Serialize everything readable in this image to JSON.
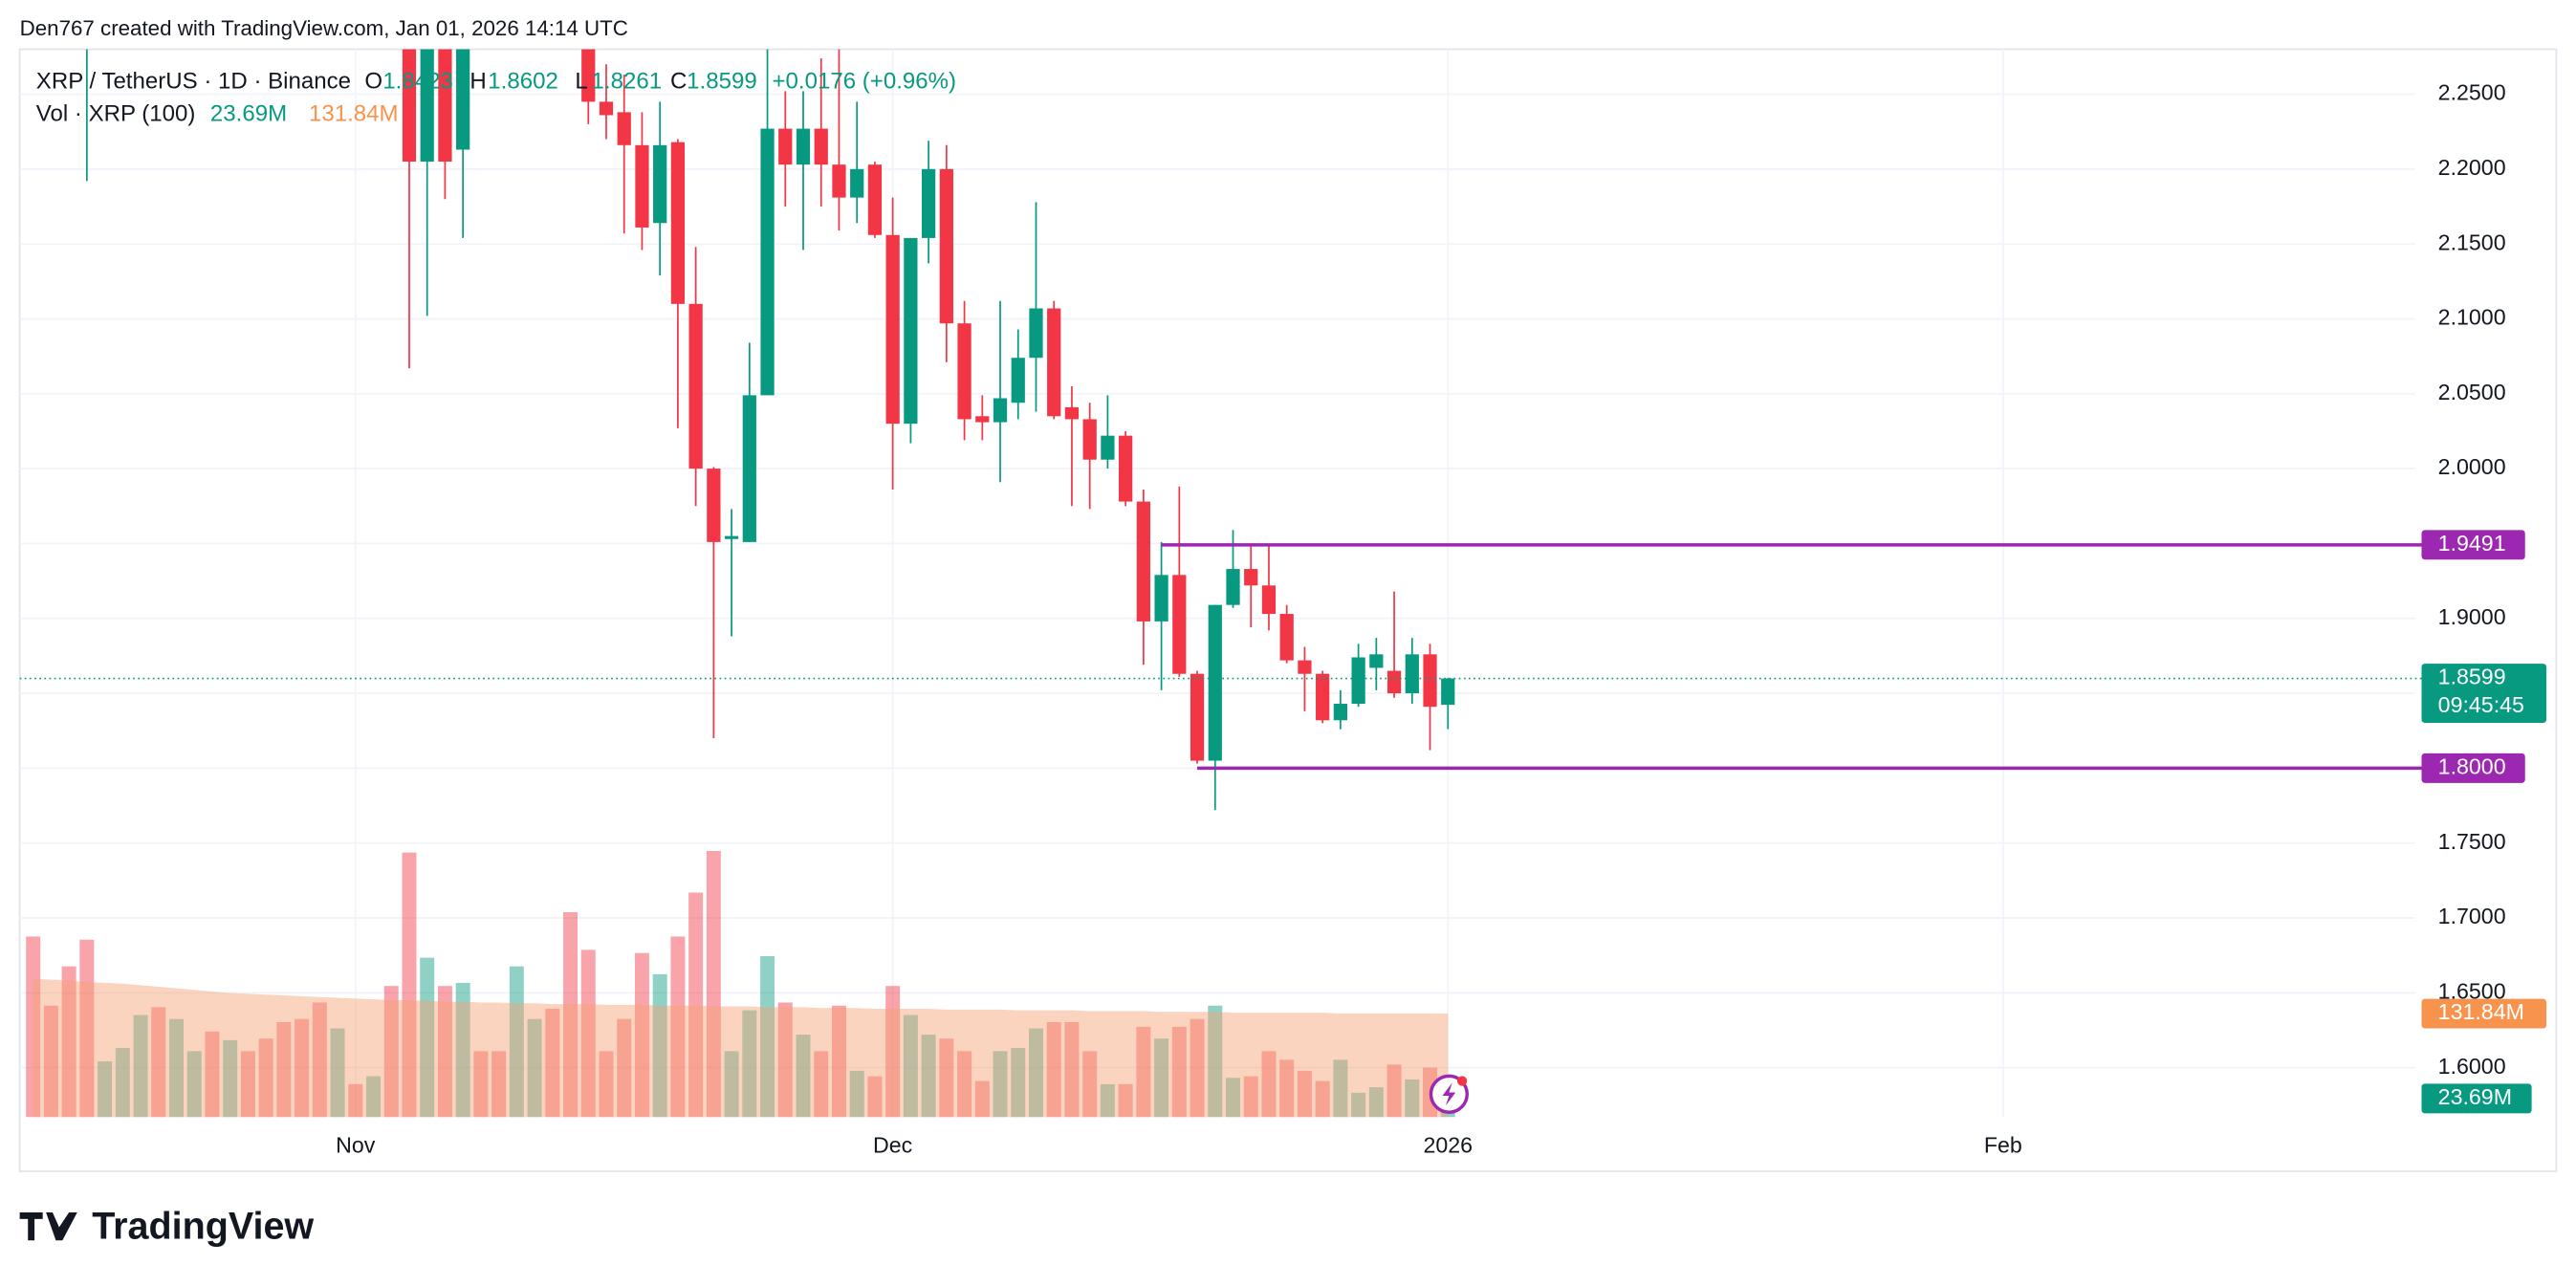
{
  "header": "Den767 created with TradingView.com, Jan 01, 2026 14:14 UTC",
  "brand": "TradingView",
  "chart_data": {
    "type": "candlestick",
    "symbol": "XRP / TetherUS · 1D · Binance",
    "ohlc_legend": [
      {
        "key": "O",
        "value": "1.8423"
      },
      {
        "key": "H",
        "value": "1.8602"
      },
      {
        "key": "L",
        "value": "1.8261"
      },
      {
        "key": "C",
        "value": "1.8599"
      }
    ],
    "change": "+0.0176 (+0.96%)",
    "x": [
      0,
      1,
      2,
      3,
      4,
      5,
      6,
      7,
      8,
      9,
      10,
      11,
      12,
      13,
      14,
      15,
      16,
      17,
      18,
      19,
      20,
      21,
      22,
      23,
      24,
      25,
      26,
      27,
      28,
      29,
      30,
      31,
      32,
      33,
      34,
      35,
      36,
      37,
      38,
      39,
      40,
      41,
      42,
      43,
      44,
      45,
      46,
      47,
      48,
      49,
      50,
      51,
      52,
      53,
      54,
      55,
      56,
      57,
      58,
      59,
      60,
      61,
      62,
      63,
      64,
      65,
      66,
      67,
      68,
      69,
      70,
      71,
      72,
      73,
      74,
      75,
      76,
      77,
      78,
      79
    ],
    "open": [
      null,
      null,
      null,
      2.35,
      null,
      null,
      null,
      null,
      null,
      null,
      null,
      null,
      null,
      null,
      null,
      null,
      null,
      null,
      null,
      null,
      null,
      2.3,
      2.205,
      2.31,
      2.213,
      null,
      null,
      null,
      null,
      null,
      null,
      2.3,
      2.245,
      2.238,
      2.216,
      2.164,
      2.218,
      2.11,
      2.0,
      1.953,
      1.951,
      2.049,
      2.227,
      2.203,
      2.227,
      2.203,
      2.181,
      2.203,
      2.156,
      2.03,
      2.154,
      2.2,
      2.097,
      2.035,
      2.031,
      2.044,
      2.074,
      2.107,
      2.041,
      2.033,
      2.006,
      2.022,
      1.978,
      1.898,
      1.929,
      1.863,
      1.805,
      1.909,
      1.933,
      1.922,
      1.903,
      1.872,
      1.863,
      1.832,
      1.843,
      1.867,
      1.865,
      1.85,
      1.876,
      1.8423
    ],
    "high": [
      null,
      null,
      null,
      2.4,
      null,
      null,
      null,
      null,
      null,
      null,
      null,
      null,
      null,
      null,
      null,
      null,
      null,
      null,
      null,
      null,
      null,
      2.33,
      2.32,
      2.33,
      2.31,
      null,
      null,
      null,
      null,
      null,
      null,
      2.32,
      2.27,
      2.263,
      2.238,
      2.245,
      2.22,
      2.148,
      2.001,
      1.973,
      2.084,
      2.28,
      2.252,
      2.252,
      2.274,
      2.28,
      2.245,
      2.205,
      2.181,
      2.154,
      2.219,
      2.216,
      2.112,
      2.049,
      2.112,
      2.093,
      2.178,
      2.112,
      2.055,
      2.044,
      2.049,
      2.025,
      1.986,
      1.951,
      1.988,
      1.865,
      1.909,
      1.959,
      1.949,
      1.949,
      1.909,
      1.881,
      1.865,
      1.852,
      1.883,
      1.887,
      1.918,
      1.887,
      1.883,
      1.8602
    ],
    "low": [
      null,
      null,
      null,
      2.192,
      null,
      null,
      null,
      null,
      null,
      null,
      null,
      null,
      null,
      null,
      null,
      null,
      null,
      null,
      null,
      null,
      null,
      2.067,
      2.102,
      2.18,
      2.154,
      null,
      null,
      null,
      null,
      null,
      null,
      2.23,
      2.22,
      2.157,
      2.146,
      2.129,
      2.027,
      1.975,
      1.82,
      1.888,
      1.951,
      2.049,
      2.175,
      2.146,
      2.175,
      2.159,
      2.164,
      2.154,
      1.986,
      2.017,
      2.137,
      2.071,
      2.019,
      2.019,
      1.991,
      2.033,
      2.038,
      2.033,
      1.975,
      1.973,
      2.0,
      1.975,
      1.869,
      1.852,
      1.861,
      1.803,
      1.772,
      1.907,
      1.894,
      1.892,
      1.87,
      1.838,
      1.83,
      1.826,
      1.841,
      1.852,
      1.847,
      1.843,
      1.812,
      1.8261
    ],
    "close": [
      null,
      null,
      null,
      2.36,
      null,
      null,
      null,
      null,
      null,
      null,
      null,
      null,
      null,
      null,
      null,
      null,
      null,
      null,
      null,
      null,
      null,
      2.205,
      2.3,
      2.205,
      2.29,
      null,
      null,
      null,
      null,
      null,
      null,
      2.245,
      2.236,
      2.216,
      2.161,
      2.216,
      2.11,
      2.0,
      1.951,
      1.955,
      2.049,
      2.227,
      2.203,
      2.227,
      2.203,
      2.181,
      2.2,
      2.156,
      2.03,
      2.154,
      2.2,
      2.097,
      2.033,
      2.031,
      2.047,
      2.074,
      2.107,
      2.035,
      2.033,
      2.006,
      2.022,
      1.978,
      1.898,
      1.929,
      1.863,
      1.805,
      1.909,
      1.933,
      1.922,
      1.903,
      1.872,
      1.863,
      1.832,
      1.843,
      1.874,
      1.876,
      1.85,
      1.876,
      1.841,
      1.8599
    ],
    "up_color": "#089981",
    "down_color": "#f23645",
    "xlim": [
      -0.75,
      133
    ],
    "ylim": [
      1.567,
      2.28
    ],
    "xticks": [
      {
        "value": 18,
        "label": "Nov"
      },
      {
        "value": 48,
        "label": "Dec"
      },
      {
        "value": 79,
        "label": "2026"
      },
      {
        "value": 110,
        "label": "Feb"
      }
    ],
    "yticks": [
      {
        "value": 2.25,
        "label": "2.2500"
      },
      {
        "value": 2.2,
        "label": "2.2000"
      },
      {
        "value": 2.15,
        "label": "2.1500"
      },
      {
        "value": 2.1,
        "label": "2.1000"
      },
      {
        "value": 2.05,
        "label": "2.0500"
      },
      {
        "value": 2.0,
        "label": "2.0000"
      },
      {
        "value": 1.95,
        "label": "1.9500"
      },
      {
        "value": 1.9,
        "label": "1.9000"
      },
      {
        "value": 1.85,
        "label": "1.8500"
      },
      {
        "value": 1.8,
        "label": "1.8000"
      },
      {
        "value": 1.75,
        "label": "1.7500"
      },
      {
        "value": 1.7,
        "label": "1.7000"
      },
      {
        "value": 1.65,
        "label": "1.6500"
      },
      {
        "value": 1.6,
        "label": "1.6000"
      }
    ],
    "grid": true,
    "levels": [
      {
        "value": 1.9491,
        "label": "1.9491",
        "x_start": 63,
        "color": "#9c27b0"
      },
      {
        "value": 1.8,
        "label": "1.8000",
        "x_start": 65,
        "color": "#9c27b0"
      }
    ],
    "last_price": {
      "value": 1.8599,
      "label": "1.8599",
      "countdown": "09:45:45",
      "color": "#089981"
    },
    "volume": {
      "title": "Vol · XRP (100)",
      "ylim": [
        0,
        1360
      ],
      "values": [
        230,
        142,
        192,
        226,
        71,
        88,
        130,
        140,
        125,
        84,
        109,
        98,
        84,
        100,
        121,
        125,
        146,
        113,
        42,
        52,
        167,
        337,
        203,
        167,
        171,
        84,
        84,
        192,
        125,
        138,
        261,
        213,
        84,
        125,
        209,
        182,
        230,
        286,
        339,
        84,
        136,
        205,
        146,
        105,
        84,
        142,
        59,
        52,
        167,
        130,
        105,
        100,
        84,
        46,
        84,
        88,
        113,
        121,
        121,
        84,
        42,
        42,
        115,
        100,
        115,
        125,
        142,
        50,
        52,
        84,
        73,
        59,
        46,
        73,
        31,
        38,
        67,
        48,
        63,
        23.69
      ],
      "colors": [
        "#f23645",
        "#f23645",
        "#f23645",
        "#f23645",
        "#089981",
        "#089981",
        "#089981",
        "#f23645",
        "#089981",
        "#089981",
        "#f23645",
        "#089981",
        "#f23645",
        "#f23645",
        "#f23645",
        "#f23645",
        "#f23645",
        "#089981",
        "#f23645",
        "#089981",
        "#f23645",
        "#f23645",
        "#089981",
        "#f23645",
        "#089981",
        "#f23645",
        "#f23645",
        "#089981",
        "#089981",
        "#f23645",
        "#f23645",
        "#f23645",
        "#f23645",
        "#f23645",
        "#f23645",
        "#089981",
        "#f23645",
        "#f23645",
        "#f23645",
        "#089981",
        "#089981",
        "#089981",
        "#f23645",
        "#089981",
        "#f23645",
        "#f23645",
        "#089981",
        "#f23645",
        "#f23645",
        "#089981",
        "#089981",
        "#f23645",
        "#f23645",
        "#f23645",
        "#089981",
        "#089981",
        "#089981",
        "#f23645",
        "#f23645",
        "#f23645",
        "#089981",
        "#f23645",
        "#f23645",
        "#089981",
        "#f23645",
        "#f23645",
        "#089981",
        "#089981",
        "#f23645",
        "#f23645",
        "#f23645",
        "#f23645",
        "#f23645",
        "#089981",
        "#089981",
        "#089981",
        "#f23645",
        "#089981",
        "#f23645",
        "#089981"
      ],
      "ma": [
        176,
        175,
        174,
        172,
        171,
        170,
        168,
        166,
        164,
        162,
        160,
        158,
        157,
        156,
        155,
        154,
        153,
        152,
        151,
        150,
        149,
        149,
        148,
        147,
        147,
        146,
        146,
        145,
        145,
        144,
        144,
        144,
        143,
        143,
        143,
        142,
        142,
        142,
        141,
        141,
        141,
        140,
        140,
        140,
        139,
        139,
        139,
        138,
        138,
        138,
        138,
        137,
        137,
        137,
        137,
        136,
        136,
        136,
        136,
        135,
        135,
        135,
        135,
        134,
        134,
        134,
        134,
        133,
        133,
        133,
        133,
        133,
        133,
        132,
        132,
        132,
        132,
        132,
        132,
        131.84
      ],
      "ma_color": "#f7a072",
      "last_label": {
        "value": 23.69,
        "label": "23.69M",
        "color": "#089981"
      },
      "ma_label": {
        "value": 131.84,
        "label": "131.84M",
        "color": "#f7934c"
      }
    }
  }
}
